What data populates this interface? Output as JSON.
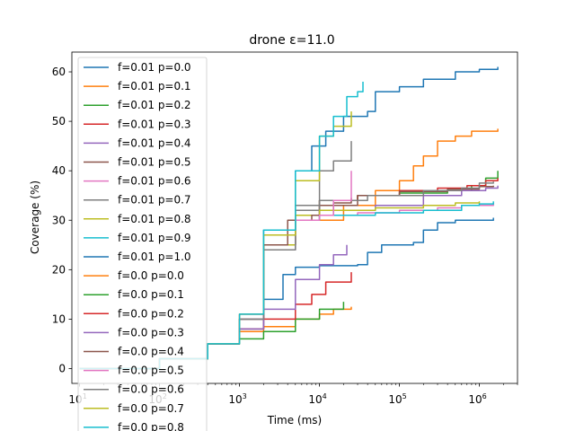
{
  "chart_data": {
    "type": "line",
    "title": "drone ε=11.0",
    "xlabel": "Time (ms)",
    "ylabel": "Coverage (%)",
    "xscale": "log",
    "xlim": [
      8,
      3000000
    ],
    "ylim": [
      -3,
      64
    ],
    "xticks": [
      {
        "value": 10,
        "base": "10",
        "exp": "1"
      },
      {
        "value": 100,
        "base": "10",
        "exp": "2"
      },
      {
        "value": 1000,
        "base": "10",
        "exp": "3"
      },
      {
        "value": 10000,
        "base": "10",
        "exp": "4"
      },
      {
        "value": 100000,
        "base": "10",
        "exp": "5"
      },
      {
        "value": 1000000,
        "base": "10",
        "exp": "6"
      }
    ],
    "yticks": [
      0,
      10,
      20,
      30,
      40,
      50,
      60
    ],
    "grid": false,
    "legend_position": "upper left",
    "series": [
      {
        "name": "f=0.01 p=0.0",
        "color": "#1f77b4",
        "points": [
          [
            10,
            0
          ],
          [
            100,
            2
          ],
          [
            400,
            5
          ],
          [
            1000,
            10
          ],
          [
            2000,
            28
          ],
          [
            5000,
            40
          ],
          [
            8000,
            45
          ],
          [
            12000,
            48
          ],
          [
            20000,
            51
          ],
          [
            40000,
            52
          ],
          [
            50000,
            56
          ],
          [
            100000,
            57
          ],
          [
            200000,
            58.5
          ],
          [
            500000,
            60
          ],
          [
            1000000,
            60.5
          ],
          [
            1700000,
            61
          ]
        ]
      },
      {
        "name": "f=0.01 p=0.1",
        "color": "#ff7f0e",
        "points": [
          [
            10,
            0
          ],
          [
            100,
            2
          ],
          [
            400,
            5
          ],
          [
            1000,
            10
          ],
          [
            2000,
            25
          ],
          [
            5000,
            30
          ],
          [
            20000,
            33
          ],
          [
            50000,
            36
          ],
          [
            100000,
            38
          ],
          [
            150000,
            41
          ],
          [
            200000,
            43
          ],
          [
            300000,
            46
          ],
          [
            500000,
            47
          ],
          [
            800000,
            48
          ],
          [
            1700000,
            48.5
          ]
        ]
      },
      {
        "name": "f=0.01 p=0.2",
        "color": "#2ca02c",
        "points": [
          [
            10,
            0
          ],
          [
            100,
            2
          ],
          [
            400,
            5
          ],
          [
            1000,
            10
          ],
          [
            2000,
            25
          ],
          [
            5000,
            32
          ],
          [
            10000,
            34
          ],
          [
            30000,
            35
          ],
          [
            100000,
            35.5
          ],
          [
            400000,
            36
          ],
          [
            800000,
            37
          ],
          [
            1200000,
            38.5
          ],
          [
            1700000,
            40
          ]
        ]
      },
      {
        "name": "f=0.01 p=0.3",
        "color": "#d62728",
        "points": [
          [
            10,
            0
          ],
          [
            100,
            2
          ],
          [
            400,
            5
          ],
          [
            1000,
            11
          ],
          [
            2000,
            25
          ],
          [
            5000,
            31
          ],
          [
            10000,
            34
          ],
          [
            30000,
            35
          ],
          [
            100000,
            36
          ],
          [
            300000,
            36.5
          ],
          [
            700000,
            37
          ],
          [
            1200000,
            38
          ],
          [
            1700000,
            38.5
          ]
        ]
      },
      {
        "name": "f=0.01 p=0.4",
        "color": "#9467bd",
        "points": [
          [
            10,
            0
          ],
          [
            100,
            2
          ],
          [
            400,
            5
          ],
          [
            1000,
            10
          ],
          [
            2000,
            24
          ],
          [
            5000,
            30
          ],
          [
            10000,
            32
          ],
          [
            50000,
            33
          ],
          [
            200000,
            35
          ],
          [
            600000,
            36
          ],
          [
            1200000,
            36.5
          ],
          [
            1700000,
            37
          ]
        ]
      },
      {
        "name": "f=0.01 p=0.5",
        "color": "#8c564b",
        "points": [
          [
            10,
            0
          ],
          [
            100,
            2
          ],
          [
            400,
            5
          ],
          [
            1000,
            10
          ],
          [
            2000,
            25
          ],
          [
            5000,
            31
          ],
          [
            10000,
            33
          ],
          [
            30000,
            35
          ],
          [
            100000,
            35.8
          ],
          [
            400000,
            36.3
          ],
          [
            1000000,
            36.8
          ],
          [
            1500000,
            37
          ]
        ]
      },
      {
        "name": "f=0.01 p=0.6",
        "color": "#e377c2",
        "points": [
          [
            10,
            0
          ],
          [
            100,
            2
          ],
          [
            400,
            5
          ],
          [
            1000,
            10
          ],
          [
            2000,
            25
          ],
          [
            5000,
            30
          ],
          [
            10000,
            31
          ],
          [
            30000,
            31.5
          ],
          [
            100000,
            32
          ],
          [
            300000,
            32.5
          ],
          [
            600000,
            33
          ],
          [
            1500000,
            33.5
          ]
        ]
      },
      {
        "name": "f=0.01 p=0.7",
        "color": "#7f7f7f",
        "points": [
          [
            10,
            0
          ],
          [
            100,
            2
          ],
          [
            400,
            5
          ],
          [
            1000,
            10
          ],
          [
            2000,
            25
          ],
          [
            5000,
            32
          ],
          [
            10000,
            34
          ],
          [
            40000,
            35
          ],
          [
            200000,
            36
          ],
          [
            600000,
            36.5
          ],
          [
            1000000,
            37.5
          ],
          [
            1500000,
            37.8
          ]
        ]
      },
      {
        "name": "f=0.01 p=0.8",
        "color": "#bcbd22",
        "points": [
          [
            10,
            0
          ],
          [
            100,
            2
          ],
          [
            400,
            5
          ],
          [
            1000,
            10
          ],
          [
            2000,
            25
          ],
          [
            5000,
            31
          ],
          [
            10000,
            32
          ],
          [
            50000,
            32.5
          ],
          [
            200000,
            33
          ],
          [
            500000,
            33.5
          ],
          [
            1000000,
            33.8
          ]
        ]
      },
      {
        "name": "f=0.01 p=0.9",
        "color": "#17becf",
        "points": [
          [
            10,
            0
          ],
          [
            100,
            2
          ],
          [
            400,
            5
          ],
          [
            1000,
            10
          ],
          [
            2000,
            24
          ],
          [
            5000,
            30
          ],
          [
            10000,
            31
          ],
          [
            50000,
            31.5
          ],
          [
            200000,
            32
          ],
          [
            600000,
            33
          ],
          [
            1000000,
            33.3
          ],
          [
            1500000,
            33.8
          ]
        ]
      },
      {
        "name": "f=0.01 p=1.0",
        "color": "#1f77b4",
        "points": [
          [
            10,
            0
          ],
          [
            100,
            2
          ],
          [
            400,
            5
          ],
          [
            1000,
            8
          ],
          [
            2000,
            14
          ],
          [
            3500,
            19
          ],
          [
            5000,
            20.5
          ],
          [
            10000,
            20.8
          ],
          [
            30000,
            21
          ],
          [
            40000,
            23.5
          ],
          [
            60000,
            25
          ],
          [
            150000,
            25.5
          ],
          [
            200000,
            28
          ],
          [
            300000,
            29.5
          ],
          [
            500000,
            30
          ],
          [
            1500000,
            30.5
          ]
        ]
      },
      {
        "name": "f=0.0 p=0.0",
        "color": "#ff7f0e",
        "points": [
          [
            10,
            0
          ],
          [
            100,
            2
          ],
          [
            400,
            5
          ],
          [
            1000,
            7.5
          ],
          [
            2000,
            8.5
          ],
          [
            5000,
            10
          ],
          [
            10000,
            11
          ],
          [
            15000,
            12
          ],
          [
            25000,
            12.5
          ]
        ]
      },
      {
        "name": "f=0.0 p=0.1",
        "color": "#2ca02c",
        "points": [
          [
            10,
            0
          ],
          [
            100,
            2
          ],
          [
            400,
            5
          ],
          [
            1000,
            6
          ],
          [
            2000,
            7.5
          ],
          [
            5000,
            10
          ],
          [
            10000,
            12
          ],
          [
            20000,
            13.5
          ]
        ]
      },
      {
        "name": "f=0.0 p=0.2",
        "color": "#d62728",
        "points": [
          [
            10,
            0
          ],
          [
            100,
            2
          ],
          [
            400,
            5
          ],
          [
            1000,
            8
          ],
          [
            2000,
            10
          ],
          [
            5000,
            13
          ],
          [
            8000,
            15
          ],
          [
            12000,
            17.5
          ],
          [
            25000,
            19.5
          ]
        ]
      },
      {
        "name": "f=0.0 p=0.3",
        "color": "#9467bd",
        "points": [
          [
            10,
            0
          ],
          [
            100,
            2
          ],
          [
            400,
            5
          ],
          [
            1000,
            8
          ],
          [
            2000,
            12
          ],
          [
            5000,
            18
          ],
          [
            10000,
            21
          ],
          [
            15000,
            23
          ],
          [
            22000,
            25
          ]
        ]
      },
      {
        "name": "f=0.0 p=0.4",
        "color": "#8c564b",
        "points": [
          [
            10,
            0
          ],
          [
            100,
            2
          ],
          [
            400,
            5
          ],
          [
            1000,
            10
          ],
          [
            2000,
            25
          ],
          [
            4000,
            30
          ],
          [
            8000,
            31
          ],
          [
            15000,
            33.5
          ],
          [
            25000,
            34.5
          ]
        ]
      },
      {
        "name": "f=0.0 p=0.5",
        "color": "#e377c2",
        "points": [
          [
            10,
            0
          ],
          [
            100,
            2
          ],
          [
            400,
            5
          ],
          [
            1000,
            10
          ],
          [
            2000,
            24
          ],
          [
            5000,
            30
          ],
          [
            10000,
            31
          ],
          [
            15000,
            34
          ],
          [
            25000,
            40
          ]
        ]
      },
      {
        "name": "f=0.0 p=0.6",
        "color": "#7f7f7f",
        "points": [
          [
            10,
            0
          ],
          [
            100,
            2
          ],
          [
            400,
            5
          ],
          [
            1000,
            10
          ],
          [
            2000,
            24
          ],
          [
            5000,
            33
          ],
          [
            10000,
            40
          ],
          [
            15000,
            42
          ],
          [
            25000,
            46
          ]
        ]
      },
      {
        "name": "f=0.0 p=0.7",
        "color": "#bcbd22",
        "points": [
          [
            10,
            0
          ],
          [
            100,
            2
          ],
          [
            400,
            5
          ],
          [
            1000,
            11
          ],
          [
            2000,
            27
          ],
          [
            5000,
            38
          ],
          [
            10000,
            47
          ],
          [
            15000,
            49
          ],
          [
            25000,
            52
          ]
        ]
      },
      {
        "name": "f=0.0 p=0.8",
        "color": "#17becf",
        "points": [
          [
            10,
            0
          ],
          [
            100,
            2
          ],
          [
            400,
            5
          ],
          [
            1000,
            11
          ],
          [
            2000,
            28
          ],
          [
            5000,
            40
          ],
          [
            10000,
            47
          ],
          [
            15000,
            51
          ],
          [
            22000,
            55
          ],
          [
            30000,
            56
          ],
          [
            35000,
            58
          ]
        ]
      }
    ]
  }
}
